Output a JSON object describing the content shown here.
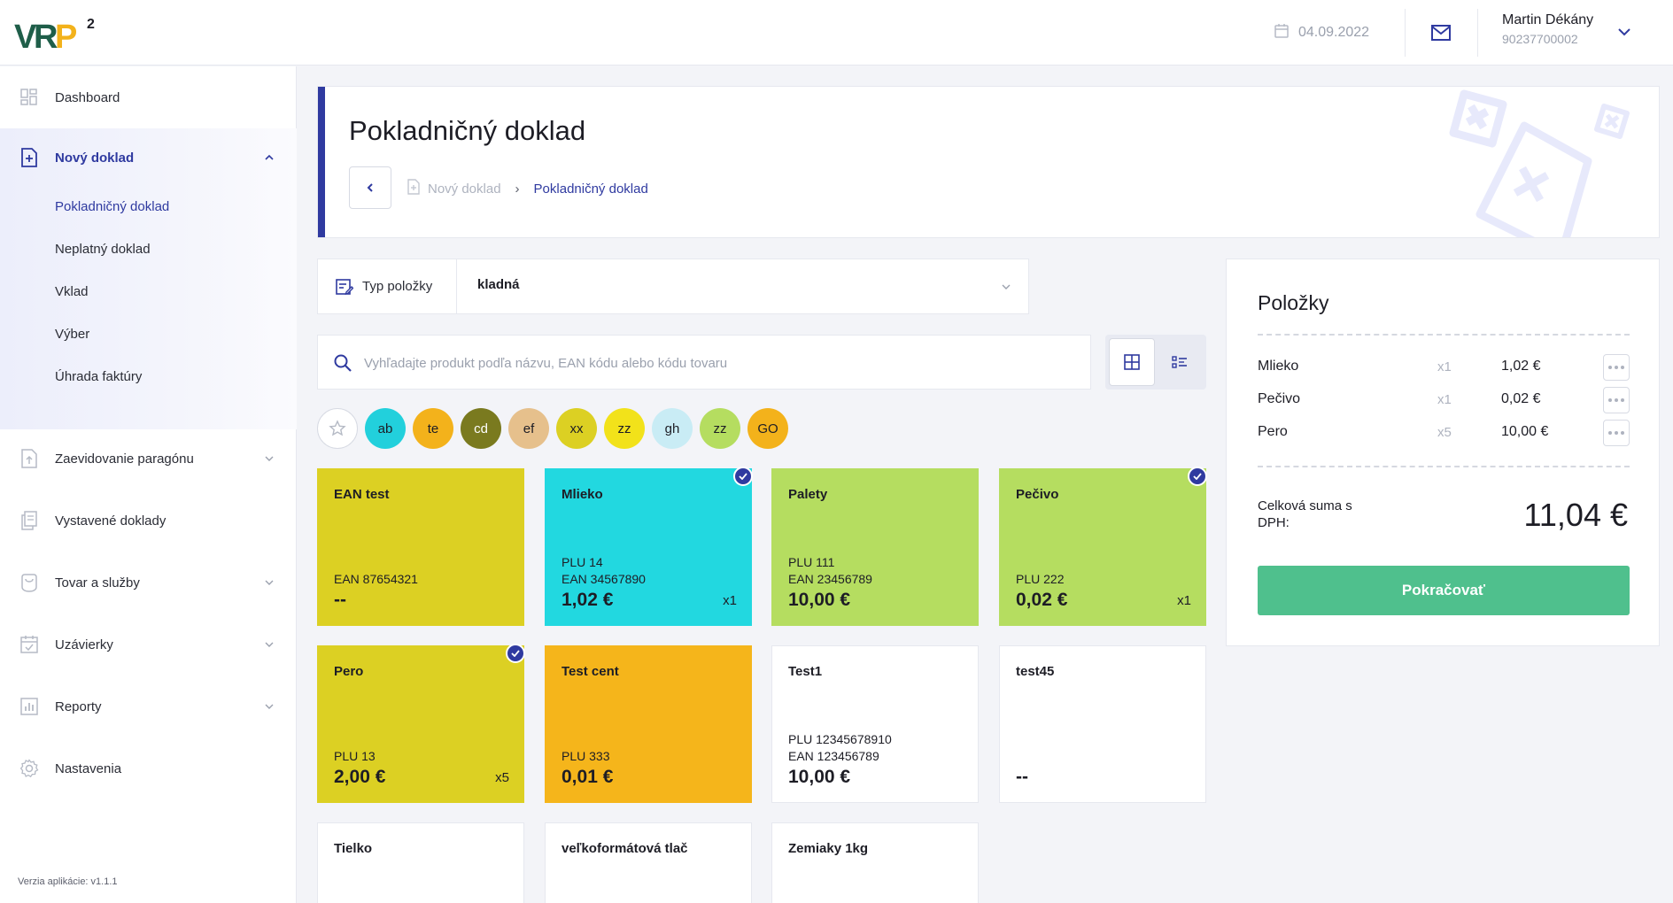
{
  "app": {
    "logo_text": "VRP",
    "logo_superscript": "2"
  },
  "header": {
    "date": "04.09.2022",
    "user_name": "Martin Dékány",
    "user_id": "90237700002"
  },
  "sidebar": {
    "dashboard": "Dashboard",
    "novy_doklad": "Nový doklad",
    "sub": [
      "Pokladničný doklad",
      "Neplatný doklad",
      "Vklad",
      "Výber",
      "Úhrada faktúry"
    ],
    "zaevidovanie": "Zaevidovanie paragónu",
    "vystavene": "Vystavené doklady",
    "tovar": "Tovar a služby",
    "uzavierky": "Uzávierky",
    "reporty": "Reporty",
    "nastavenia": "Nastavenia",
    "version": "Verzia aplikácie: v1.1.1"
  },
  "page": {
    "title": "Pokladničný doklad",
    "crumb_1": "Nový doklad",
    "crumb_sep": "›",
    "crumb_2": "Pokladničný doklad"
  },
  "type_select": {
    "label": "Typ položky",
    "value": "kladná"
  },
  "search": {
    "placeholder": "Vyhľadajte produkt podľa názvu, EAN kódu alebo kódu tovaru"
  },
  "chips": [
    {
      "label": "ab",
      "color": "#22d0dc"
    },
    {
      "label": "te",
      "color": "#f3b21b"
    },
    {
      "label": "cd",
      "color": "#7a7a1f",
      "text_color": "#ffffff"
    },
    {
      "label": "ef",
      "color": "#e6c08c"
    },
    {
      "label": "xx",
      "color": "#dcd023"
    },
    {
      "label": "zz",
      "color": "#f2e21a"
    },
    {
      "label": "gh",
      "color": "#c9ecf5"
    },
    {
      "label": "zz",
      "color": "#b5dd60"
    },
    {
      "label": "GO",
      "color": "#f3b21b"
    }
  ],
  "products": [
    {
      "name": "EAN test",
      "meta": [
        "EAN 87654321"
      ],
      "price": "--",
      "qty": "",
      "checked": false,
      "color": "#dcd023"
    },
    {
      "name": "Mlieko",
      "meta": [
        "PLU 14",
        "EAN 34567890"
      ],
      "price": "1,02 €",
      "qty": "x1",
      "checked": true,
      "color": "#22d8e0"
    },
    {
      "name": "Palety",
      "meta": [
        "PLU 111",
        "EAN 23456789"
      ],
      "price": "10,00 €",
      "qty": "",
      "checked": false,
      "color": "#b5dd60"
    },
    {
      "name": "Pečivo",
      "meta": [
        "PLU 222"
      ],
      "price": "0,02 €",
      "qty": "x1",
      "checked": true,
      "color": "#b5dd60"
    },
    {
      "name": "Pero",
      "meta": [
        "PLU 13"
      ],
      "price": "2,00 €",
      "qty": "x5",
      "checked": true,
      "color": "#dcd023"
    },
    {
      "name": "Test cent",
      "meta": [
        "PLU 333"
      ],
      "price": "0,01 €",
      "qty": "",
      "checked": false,
      "color": "#f5b51b"
    },
    {
      "name": "Test1",
      "meta": [
        "PLU 12345678910",
        "EAN 123456789"
      ],
      "price": "10,00 €",
      "qty": "",
      "checked": false,
      "color": "#ffffff"
    },
    {
      "name": "test45",
      "meta": [],
      "price": "--",
      "qty": "",
      "checked": false,
      "color": "#ffffff"
    },
    {
      "name": "Tielko",
      "meta": [],
      "price": "",
      "qty": "",
      "checked": false,
      "color": "#ffffff"
    },
    {
      "name": "veľkoformátová tlač",
      "meta": [],
      "price": "",
      "qty": "",
      "checked": false,
      "color": "#ffffff"
    },
    {
      "name": "Zemiaky 1kg",
      "meta": [],
      "price": "",
      "qty": "",
      "checked": false,
      "color": "#ffffff"
    }
  ],
  "panel": {
    "title": "Položky",
    "items": [
      {
        "name": "Mlieko",
        "qty": "x1",
        "price": "1,02 €"
      },
      {
        "name": "Pečivo",
        "qty": "x1",
        "price": "0,02 €"
      },
      {
        "name": "Pero",
        "qty": "x5",
        "price": "10,00 €"
      }
    ],
    "total_label": "Celková suma s DPH:",
    "total_value": "11,04 €",
    "continue_label": "Pokračovať"
  },
  "colors": {
    "accent": "#2f3aa0",
    "success": "#4fc08d"
  }
}
